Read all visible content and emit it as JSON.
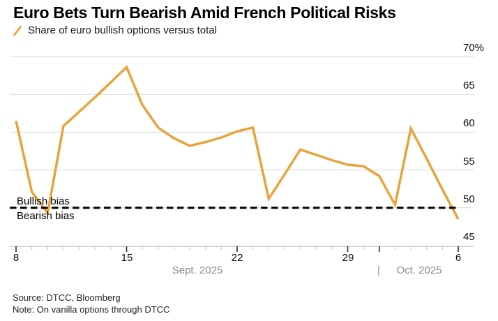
{
  "header": {
    "title": "Euro Bets Turn Bearish Amid French Political Risks",
    "legend": {
      "label": "Share of euro bullish options versus total",
      "icon": "diagonal-slash-icon",
      "color": "#E8A33C"
    }
  },
  "chart_data": {
    "type": "line",
    "title": "Euro Bets Turn Bearish Amid French Political Risks",
    "series": [
      {
        "name": "Share of euro bullish options versus total",
        "color": "#E8A33C",
        "values": [
          61.5,
          52.1,
          49.3,
          60.8,
          62.7,
          64.6,
          66.6,
          68.6,
          63.6,
          60.6,
          59.2,
          58.2,
          58.7,
          59.3,
          60.1,
          60.6,
          51.2,
          54.4,
          57.7,
          57.0,
          56.3,
          55.7,
          55.5,
          54.2,
          50.4,
          60.5,
          56.5,
          52.4,
          48.5
        ]
      }
    ],
    "x": [
      "Sep 8",
      "Sep 9",
      "Sep 10",
      "Sep 11",
      "Sep 12",
      "Sep 13",
      "Sep 14",
      "Sep 15",
      "Sep 16",
      "Sep 17",
      "Sep 18",
      "Sep 19",
      "Sep 20",
      "Sep 21",
      "Sep 22",
      "Sep 23",
      "Sep 24",
      "Sep 25",
      "Sep 26",
      "Sep 27",
      "Sep 28",
      "Sep 29",
      "Sep 30",
      "Oct 1",
      "Oct 2",
      "Oct 3",
      "Oct 4",
      "Oct 5",
      "Oct 6"
    ],
    "ylim": [
      45,
      70
    ],
    "unit": "%",
    "grid": "horizontal",
    "legend_position": "top-left",
    "y_ticks": [
      {
        "label": "70%",
        "value": 70
      },
      {
        "label": "65",
        "value": 65
      },
      {
        "label": "60",
        "value": 60
      },
      {
        "label": "55",
        "value": 55
      },
      {
        "label": "50",
        "value": 50
      },
      {
        "label": "45",
        "value": 45
      }
    ],
    "y_gridline_values": [
      70,
      65,
      60,
      55,
      50
    ],
    "x_ticks": [
      {
        "label": "8",
        "index": 0
      },
      {
        "label": "15",
        "index": 7
      },
      {
        "label": "22",
        "index": 14
      },
      {
        "label": "29",
        "index": 21
      },
      {
        "label": "6",
        "index": 28
      }
    ],
    "major_tick_indices": [
      0,
      7,
      14,
      21,
      23,
      28
    ],
    "threshold": {
      "value": 50,
      "style": "dashed",
      "color": "#000000",
      "label_above": "Bullish bias",
      "label_below": "Bearish bias"
    }
  },
  "annotations": {
    "bullish_label": "Bullish bias",
    "bearish_label": "Bearish bias"
  },
  "x_axis_months": {
    "left": "Sept. 2025",
    "separator": "|",
    "right": "Oct. 2025"
  },
  "footer": {
    "source": "Source: DTCC, Bloomberg",
    "note": "Note: On vanilla options through DTCC"
  },
  "colors": {
    "line": "#E8A33C",
    "gridline": "#D9D9D9",
    "axis": "#C8C8C8",
    "tick_major": "#2B2B2B",
    "tick_minor": "#CCCCCC",
    "month_text": "#8C8C8C",
    "threshold": "#000000"
  }
}
